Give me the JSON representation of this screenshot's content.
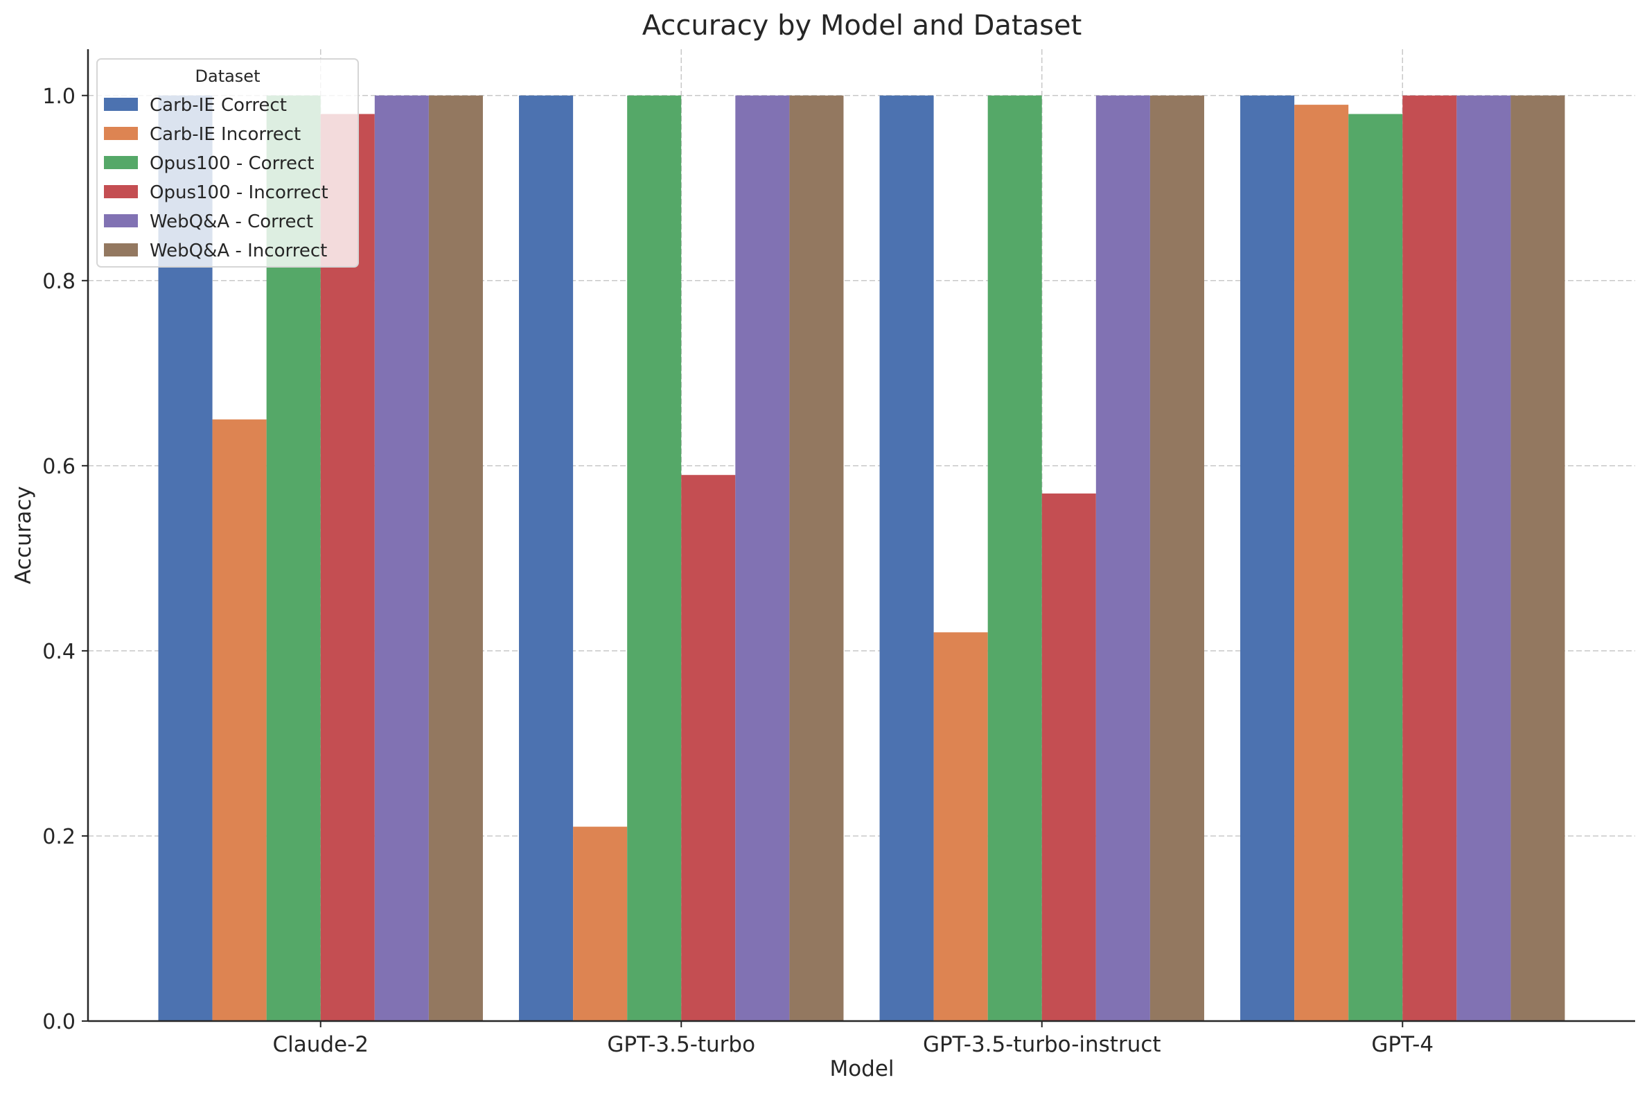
{
  "chart_data": {
    "type": "bar",
    "title": "Accuracy by Model and Dataset",
    "xlabel": "Model",
    "ylabel": "Accuracy",
    "categories": [
      "Claude-2",
      "GPT-3.5-turbo",
      "GPT-3.5-turbo-instruct",
      "GPT-4"
    ],
    "ylim": [
      0,
      1.05
    ],
    "yticks": [
      "0.0",
      "0.2",
      "0.4",
      "0.6",
      "0.8",
      "1.0"
    ],
    "grid": true,
    "legend": {
      "title": "Dataset",
      "placement": "top-left"
    },
    "series": [
      {
        "name": "Carb-IE Correct",
        "color": "#4c72b0",
        "values": [
          1.0,
          1.0,
          1.0,
          1.0
        ]
      },
      {
        "name": "Carb-IE Incorrect",
        "color": "#dd8452",
        "values": [
          0.65,
          0.21,
          0.42,
          0.99
        ]
      },
      {
        "name": "Opus100 - Correct",
        "color": "#55a868",
        "values": [
          1.0,
          1.0,
          1.0,
          0.98
        ]
      },
      {
        "name": "Opus100 - Incorrect",
        "color": "#c44e52",
        "values": [
          0.98,
          0.59,
          0.57,
          1.0
        ]
      },
      {
        "name": "WebQ&A - Correct",
        "color": "#8172b3",
        "values": [
          1.0,
          1.0,
          1.0,
          1.0
        ]
      },
      {
        "name": "WebQ&A - Incorrect",
        "color": "#937860",
        "values": [
          1.0,
          1.0,
          1.0,
          1.0
        ]
      }
    ]
  }
}
